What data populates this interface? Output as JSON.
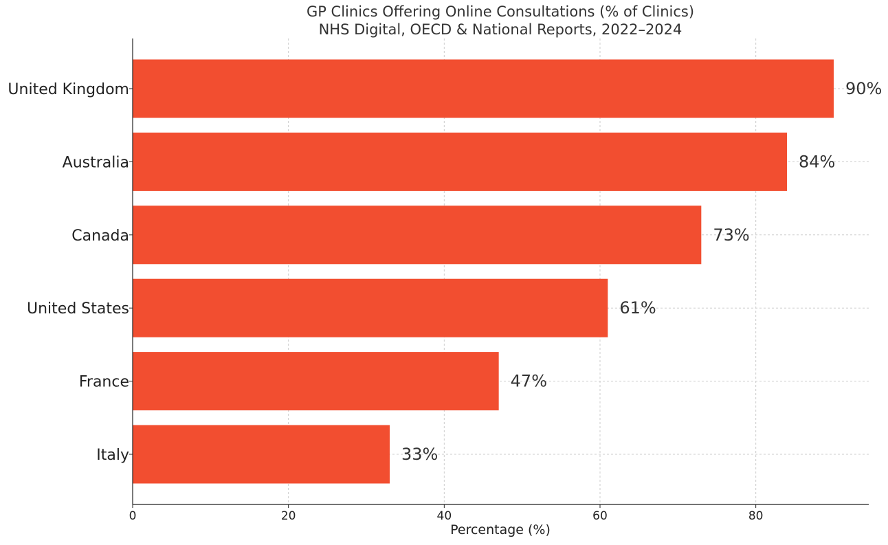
{
  "chart_data": {
    "type": "bar",
    "orientation": "horizontal",
    "title": "GP Clinics Offering Online Consultations (% of Clinics)",
    "subtitle": "NHS Digital, OECD & National Reports, 2022–2024",
    "xlabel": "Percentage (%)",
    "ylabel": "",
    "categories": [
      "United Kingdom",
      "Australia",
      "Canada",
      "United States",
      "France",
      "Italy"
    ],
    "values": [
      90,
      84,
      73,
      61,
      47,
      33
    ],
    "data_labels": [
      "90%",
      "84%",
      "73%",
      "61%",
      "47%",
      "33%"
    ],
    "xlim": [
      0,
      94.5
    ],
    "xticks": [
      0,
      20,
      40,
      60,
      80
    ],
    "grid": true,
    "bar_color": "#f24e30"
  }
}
